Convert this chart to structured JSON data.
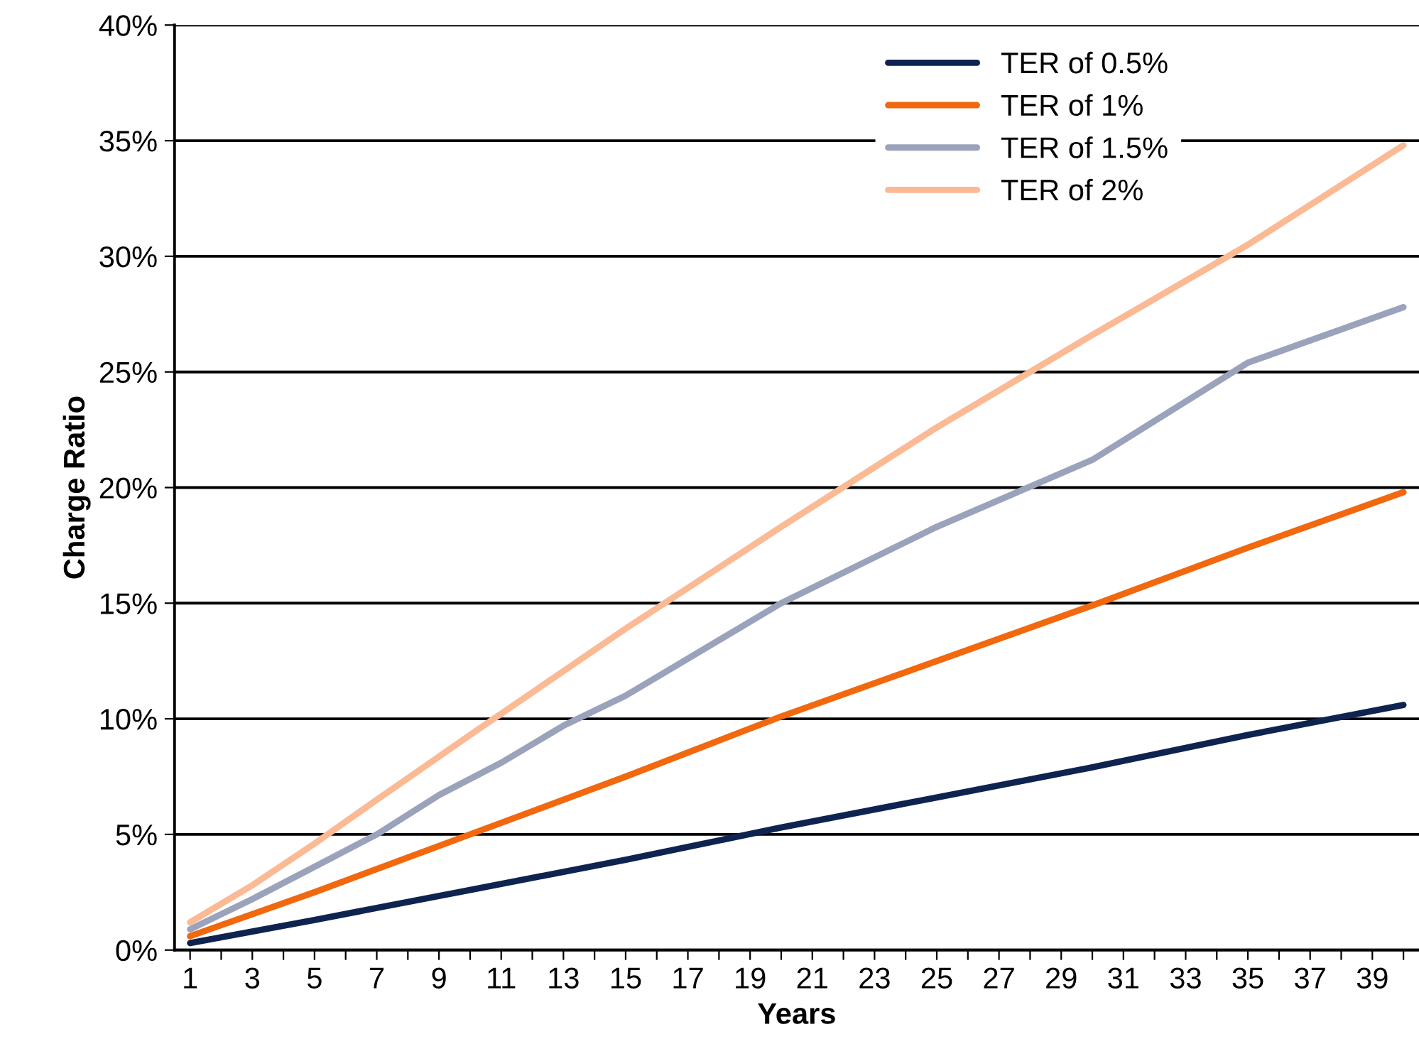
{
  "chart_data": {
    "type": "line",
    "xlabel": "Years",
    "ylabel": "Charge Ratio",
    "xlim": [
      0.5,
      40.5
    ],
    "xticks": [
      1,
      {
        "value": 2,
        "label": null
      },
      3,
      {
        "value": 4,
        "label": null
      },
      5,
      {
        "value": 6,
        "label": null
      },
      7,
      {
        "value": 8,
        "label": null
      },
      9,
      {
        "value": 10,
        "label": null
      },
      11,
      {
        "value": 12,
        "label": null
      },
      13,
      {
        "value": 14,
        "label": null
      },
      15,
      {
        "value": 16,
        "label": null
      },
      17,
      {
        "value": 18,
        "label": null
      },
      19,
      {
        "value": 20,
        "label": null
      },
      21,
      {
        "value": 22,
        "label": null
      },
      23,
      {
        "value": 24,
        "label": null
      },
      25,
      {
        "value": 26,
        "label": null
      },
      27,
      {
        "value": 28,
        "label": null
      },
      29,
      {
        "value": 30,
        "label": null
      },
      31,
      {
        "value": 32,
        "label": null
      },
      33,
      {
        "value": 34,
        "label": null
      },
      35,
      {
        "value": 36,
        "label": null
      },
      37,
      {
        "value": 38,
        "label": null
      },
      39,
      {
        "value": 40,
        "label": null
      }
    ],
    "ylim": [
      0,
      40
    ],
    "yticks": [
      {
        "value": 0,
        "label": "0%"
      },
      {
        "value": 5,
        "label": "5%"
      },
      {
        "value": 10,
        "label": "10%"
      },
      {
        "value": 15,
        "label": "15%"
      },
      {
        "value": 20,
        "label": "20%"
      },
      {
        "value": 25,
        "label": "25%"
      },
      {
        "value": 30,
        "label": "30%"
      },
      {
        "value": 35,
        "label": "35%"
      },
      {
        "value": 40,
        "label": "40%"
      }
    ],
    "grid": "y",
    "legend": "top right",
    "marker": "none",
    "line_style": "solid",
    "series": [
      {
        "name": "TER of 0.5%",
        "color": "#0f2350",
        "x": [
          1,
          5,
          10,
          15,
          20,
          25,
          30,
          35,
          40
        ],
        "values": [
          0.3,
          1.3,
          2.6,
          3.9,
          5.3,
          6.6,
          7.9,
          9.3,
          10.6
        ]
      },
      {
        "name": "TER of 1%",
        "color": "#f2680f",
        "x": [
          1,
          5,
          10,
          15,
          20,
          25,
          30,
          35,
          40
        ],
        "values": [
          0.6,
          2.5,
          5.0,
          7.5,
          10.1,
          12.5,
          14.9,
          17.4,
          19.8
        ]
      },
      {
        "name": "TER of 1.5%",
        "color": "#9aa3bb",
        "x": [
          1,
          3,
          5,
          7,
          9,
          11,
          13,
          15,
          20,
          25,
          30,
          35,
          40
        ],
        "values": [
          0.9,
          2.2,
          3.6,
          5.0,
          6.7,
          8.1,
          9.7,
          11.0,
          15.0,
          18.3,
          21.2,
          25.4,
          27.8
        ]
      },
      {
        "name": "TER of 2%",
        "color": "#fbb994",
        "x": [
          1,
          3,
          5,
          7,
          10,
          15,
          20,
          25,
          30,
          35,
          40
        ],
        "values": [
          1.2,
          2.8,
          4.6,
          6.5,
          9.3,
          13.9,
          18.3,
          22.6,
          26.6,
          30.5,
          34.8
        ]
      }
    ]
  }
}
